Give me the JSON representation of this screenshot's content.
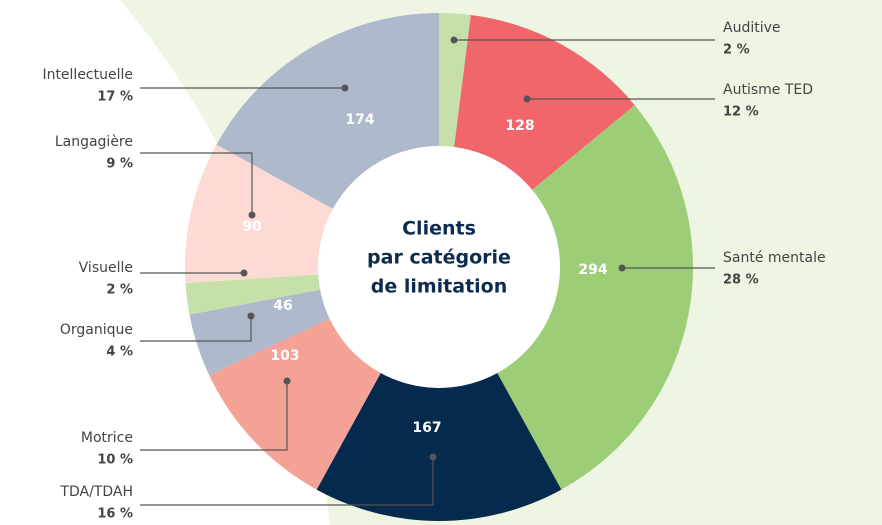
{
  "chart_data": {
    "type": "donut",
    "center_label": [
      "Clients",
      "par catégorie",
      "de limitation"
    ],
    "categories": [
      "Auditive",
      "Autisme TED",
      "Santé mentale",
      "TDA/TDAH",
      "Motrice",
      "Organique",
      "Visuelle",
      "Langagière",
      "Intellectuelle"
    ],
    "values": [
      2,
      12,
      28,
      16,
      10,
      4,
      2,
      9,
      17
    ],
    "value_labels": [
      "2 %",
      "12 %",
      "28 %",
      "16 %",
      "10 %",
      "4 %",
      "2 %",
      "9 %",
      "17 %"
    ],
    "counts": [
      null,
      128,
      294,
      167,
      103,
      46,
      null,
      90,
      174
    ],
    "colors": [
      "#c5e0a9",
      "#f0666a",
      "#9dce77",
      "#052a4d",
      "#f4a196",
      "#aeb9cc",
      "#c5e0a9",
      "#fddbd4",
      "#aeb9cc"
    ]
  }
}
